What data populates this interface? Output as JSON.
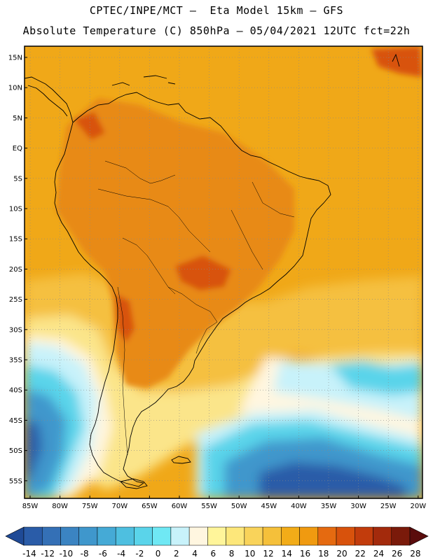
{
  "header": {
    "line1": "CPTEC/INPE/MCT –  Eta Model 15km – GFS",
    "line2": "Absolute Temperature (C) 850hPa – 05/04/2021 12UTC fct=22h"
  },
  "map": {
    "lat_labels": [
      "15N",
      "10N",
      "5N",
      "EQ",
      "5S",
      "10S",
      "15S",
      "20S",
      "25S",
      "30S",
      "35S",
      "40S",
      "45S",
      "50S",
      "55S"
    ],
    "lon_labels": [
      "85W",
      "80W",
      "75W",
      "70W",
      "65W",
      "60W",
      "55W",
      "50W",
      "45W",
      "40W",
      "35W",
      "30W",
      "25W",
      "20W"
    ]
  },
  "colorbar": {
    "labels": [
      "-14",
      "-12",
      "-10",
      "-8",
      "-6",
      "-4",
      "-2",
      "0",
      "2",
      "4",
      "6",
      "8",
      "10",
      "12",
      "14",
      "16",
      "18",
      "20",
      "22",
      "24",
      "26",
      "28"
    ],
    "colors": [
      "#1f4a96",
      "#2a5ca8",
      "#3470b6",
      "#3b84c2",
      "#3f97cc",
      "#45aad6",
      "#4ebfe0",
      "#5ad4ea",
      "#6fe8f4",
      "#c8f2fa",
      "#fff6e0",
      "#fff59a",
      "#fde77a",
      "#f9d35a",
      "#f5c03a",
      "#f2ac18",
      "#f09a10",
      "#e56a10",
      "#d8520c",
      "#c23c0c",
      "#a32a0c",
      "#7a1a0a",
      "#5a0c0c"
    ]
  },
  "palette": {
    "warm_orange": "#e88a18",
    "orange": "#f0a818",
    "gold": "#f5c040",
    "light_yellow": "#fbe58a",
    "cream": "#fff6e0",
    "pale_cyan": "#c8f2fa",
    "cyan": "#5ad4ea",
    "blue_mid": "#3f97cc",
    "blue_dark": "#2a5ca8",
    "hot_spot": "#d8520c"
  }
}
